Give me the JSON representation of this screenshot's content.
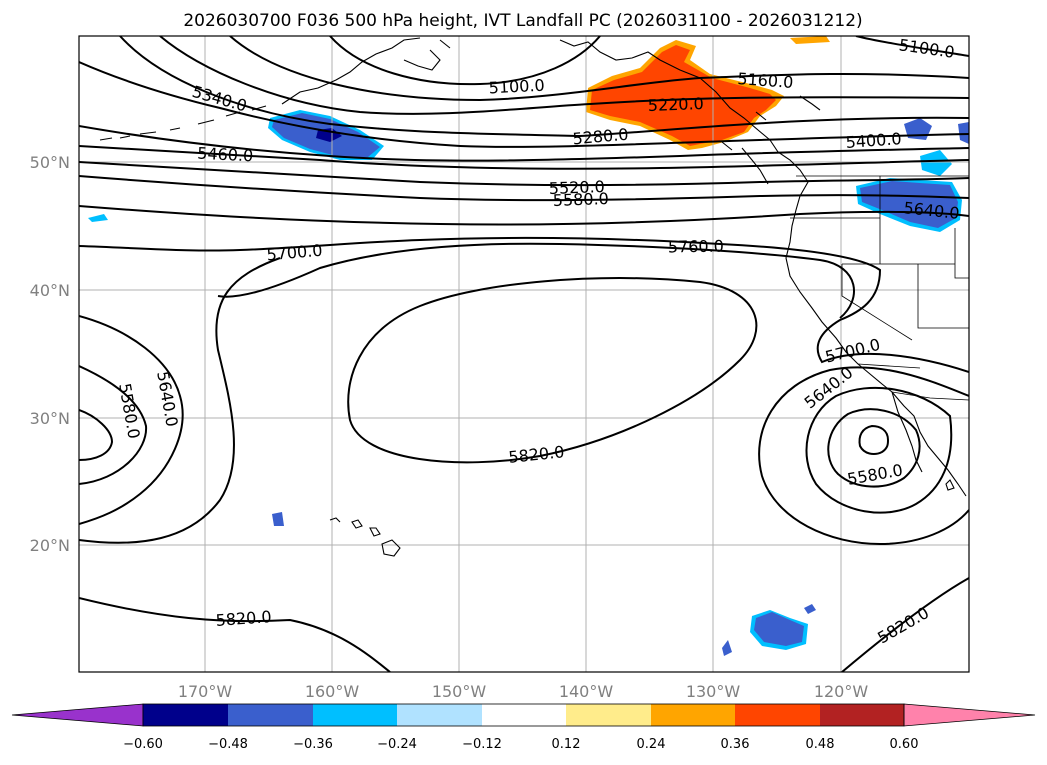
{
  "title": "2026030700 F036 500 hPa height, IVT Landfall PC (2026031100 - 2026031212)",
  "axes": {
    "lon_labels": [
      "170°W",
      "160°W",
      "150°W",
      "140°W",
      "130°W",
      "120°W"
    ],
    "lat_labels": [
      "50°N",
      "40°N",
      "30°N",
      "20°N"
    ]
  },
  "contour_labels": [
    {
      "id": "c5340",
      "text": "5340.0"
    },
    {
      "id": "c5100a",
      "text": "5100.0"
    },
    {
      "id": "c5100b",
      "text": "5100.0"
    },
    {
      "id": "c5160",
      "text": "5160.0"
    },
    {
      "id": "c5220",
      "text": "5220.0"
    },
    {
      "id": "c5280",
      "text": "5280.0"
    },
    {
      "id": "c5400",
      "text": "5400.0"
    },
    {
      "id": "c5460",
      "text": "5460.0"
    },
    {
      "id": "c5520",
      "text": "5520.0"
    },
    {
      "id": "c5580a",
      "text": "5580.0"
    },
    {
      "id": "c5640a",
      "text": "5640.0"
    },
    {
      "id": "c5700a",
      "text": "5700.0"
    },
    {
      "id": "c5760",
      "text": "5760.0"
    },
    {
      "id": "c5640b",
      "text": "5640.0"
    },
    {
      "id": "c5580b",
      "text": "5580.0"
    },
    {
      "id": "c5820a",
      "text": "5820.0"
    },
    {
      "id": "c5700b",
      "text": "5700.0"
    },
    {
      "id": "c5640c",
      "text": "5640.0"
    },
    {
      "id": "c5580c",
      "text": "5580.0"
    },
    {
      "id": "c5820b",
      "text": "5820.0"
    },
    {
      "id": "c5820c",
      "text": "5820.0"
    }
  ],
  "colorbar": {
    "colors": [
      "#9932cc",
      "#00008b",
      "#3a5fcd",
      "#00bfff",
      "#b0e2ff",
      "#ffffff",
      "#ffec8b",
      "#ffa500",
      "#ff4500",
      "#b22222",
      "#ff82ab"
    ],
    "ticks": [
      "−0.60",
      "−0.48",
      "−0.36",
      "−0.24",
      "−0.12",
      "0.12",
      "0.24",
      "0.36",
      "0.48",
      "0.60"
    ]
  }
}
